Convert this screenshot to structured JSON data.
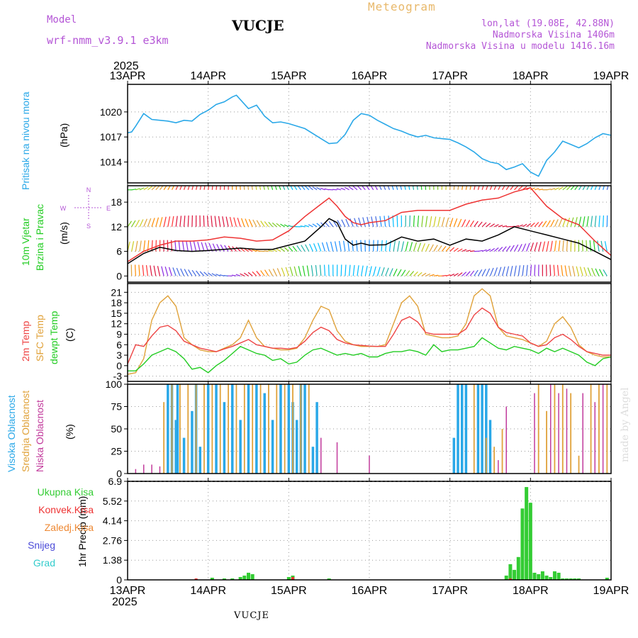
{
  "header": {
    "model_label": "Model",
    "model_name": "wrf-nmm_v3.9.1  e3km",
    "station": "VUCJE",
    "product": "Meteogram",
    "lonlat": "lon,lat (19.08E, 42.88N)",
    "altitude": "Nadmorska Visina 1406m",
    "model_altitude": "Nadmorska Visina u modelu 1416.16m",
    "watermark": "made by Angel",
    "footer_station": "VUCJE"
  },
  "time_axis": {
    "year": "2025",
    "labels": [
      "13APR",
      "14APR",
      "15APR",
      "16APR",
      "17APR",
      "18APR",
      "19APR"
    ]
  },
  "colors": {
    "pressure": "#2aa8e8",
    "wind_speed": "#000000",
    "gust": "#ee3333",
    "temp2m": "#ee4444",
    "sfc_temp": "#e0a23a",
    "dewpt": "#22cc22",
    "high_cloud": "#2aa8e8",
    "mid_cloud": "#e0a23a",
    "low_cloud": "#c23b9c",
    "total_precip": "#33cc33",
    "conv_precip": "#ee3333",
    "frz_precip": "#ee8833",
    "snow": "#4a4ad8",
    "hail": "#33cccc"
  },
  "chart_data": [
    {
      "type": "line",
      "title": "Pritisak na nivou mora",
      "ylabel": "(hPa)",
      "ylim": [
        1011.5,
        1023.3
      ],
      "yticks": [
        "1014",
        "1017",
        "1020"
      ],
      "x_days": [
        0,
        0.05,
        0.1,
        0.2,
        0.3,
        0.4,
        0.5,
        0.6,
        0.7,
        0.8,
        0.9,
        1.0,
        1.1,
        1.2,
        1.3,
        1.35,
        1.5,
        1.6,
        1.7,
        1.8,
        1.9,
        2.0,
        2.2,
        2.4,
        2.5,
        2.6,
        2.7,
        2.8,
        2.9,
        3.0,
        3.1,
        3.2,
        3.3,
        3.4,
        3.5,
        3.6,
        3.7,
        3.8,
        3.9,
        4.0,
        4.1,
        4.2,
        4.3,
        4.4,
        4.5,
        4.6,
        4.7,
        4.8,
        4.9,
        5.0,
        5.1,
        5.2,
        5.3,
        5.4,
        5.5,
        5.6,
        5.7,
        5.8,
        5.9,
        6.0
      ],
      "values": [
        1017.5,
        1017.6,
        1018.3,
        1019.8,
        1019.1,
        1019.0,
        1018.9,
        1018.7,
        1019.0,
        1018.9,
        1019.7,
        1020.2,
        1020.9,
        1021.2,
        1021.8,
        1022.0,
        1020.4,
        1020.8,
        1019.5,
        1018.7,
        1018.8,
        1018.6,
        1018.0,
        1016.8,
        1016.2,
        1016.3,
        1017.3,
        1019.0,
        1019.8,
        1019.6,
        1019.0,
        1018.5,
        1018.0,
        1017.7,
        1017.3,
        1017.0,
        1017.2,
        1016.9,
        1016.8,
        1016.7,
        1016.3,
        1015.8,
        1015.2,
        1014.4,
        1014.0,
        1013.8,
        1013.1,
        1013.4,
        1013.8,
        1012.8,
        1012.3,
        1014.2,
        1015.2,
        1016.5,
        1016.1,
        1015.7,
        1016.2,
        1016.9,
        1017.4,
        1017.2
      ]
    },
    {
      "type": "line",
      "title": "10m Vjetar Brzina i Pravac",
      "ylabel": "(m/s)",
      "ylim": [
        -1.5,
        22
      ],
      "yticks": [
        "0",
        "6",
        "12",
        "18"
      ],
      "compass": [
        "N",
        "E",
        "S",
        "W"
      ],
      "series": [
        {
          "name": "speed",
          "x_days": [
            0,
            0.2,
            0.4,
            0.6,
            0.8,
            1.0,
            1.2,
            1.4,
            1.6,
            1.8,
            2.0,
            2.2,
            2.4,
            2.5,
            2.6,
            2.7,
            2.8,
            2.9,
            3.0,
            3.2,
            3.4,
            3.6,
            3.8,
            4.0,
            4.2,
            4.4,
            4.6,
            4.8,
            5.0,
            5.2,
            5.4,
            5.6,
            5.8,
            6.0
          ],
          "values": [
            3.0,
            5.5,
            7.0,
            6.2,
            6.0,
            6.2,
            6.5,
            6.8,
            6.5,
            6.5,
            7.5,
            8.5,
            12.0,
            14.0,
            13.0,
            9.0,
            7.5,
            8.0,
            7.5,
            7.6,
            9.5,
            8.5,
            9.0,
            7.5,
            9.0,
            8.5,
            10.0,
            12.0,
            11.0,
            10.0,
            9.0,
            8.0,
            6.0,
            4.0
          ]
        },
        {
          "name": "gust",
          "x_days": [
            0,
            0.2,
            0.4,
            0.6,
            0.8,
            1.0,
            1.2,
            1.4,
            1.6,
            1.8,
            2.0,
            2.2,
            2.4,
            2.5,
            2.6,
            2.7,
            2.8,
            2.9,
            3.0,
            3.2,
            3.4,
            3.6,
            3.8,
            4.0,
            4.2,
            4.4,
            4.6,
            4.8,
            5.0,
            5.2,
            5.4,
            5.6,
            5.8,
            6.0
          ],
          "values": [
            3.5,
            6.0,
            7.5,
            8.5,
            8.5,
            8.8,
            9.5,
            9.2,
            8.5,
            8.8,
            11.0,
            14.5,
            17.5,
            19.0,
            17.0,
            14.5,
            13.0,
            12.5,
            13.0,
            13.5,
            15.5,
            16.0,
            16.0,
            16.0,
            17.5,
            18.5,
            19.0,
            20.5,
            21.5,
            17.0,
            14.0,
            12.5,
            8.5,
            5.0
          ]
        }
      ]
    },
    {
      "type": "line",
      "title": "2m Temp / SFC Temp / dewpt Temp",
      "ylabel": "(C)",
      "ylim": [
        -4.5,
        23.5
      ],
      "yticks": [
        "-3",
        "0",
        "3",
        "6",
        "9",
        "12",
        "15",
        "18",
        "21"
      ],
      "series": [
        {
          "name": "2m Temp",
          "x_days": [
            0,
            0.1,
            0.2,
            0.3,
            0.4,
            0.5,
            0.6,
            0.7,
            0.8,
            0.9,
            1.0,
            1.1,
            1.2,
            1.3,
            1.4,
            1.5,
            1.6,
            1.7,
            1.8,
            1.9,
            2.0,
            2.1,
            2.2,
            2.3,
            2.4,
            2.5,
            2.6,
            2.7,
            2.8,
            2.9,
            3.0,
            3.1,
            3.2,
            3.3,
            3.4,
            3.5,
            3.6,
            3.7,
            3.8,
            3.9,
            4.0,
            4.1,
            4.2,
            4.3,
            4.4,
            4.5,
            4.6,
            4.7,
            4.8,
            4.9,
            5.0,
            5.1,
            5.2,
            5.3,
            5.4,
            5.5,
            5.6,
            5.7,
            5.8,
            5.9,
            6.0
          ],
          "values": [
            0.5,
            6.0,
            5.5,
            8.5,
            11.0,
            11.5,
            10.0,
            7.0,
            6.0,
            5.0,
            4.5,
            4.0,
            4.8,
            5.5,
            6.5,
            7.5,
            6.0,
            5.5,
            5.0,
            5.0,
            4.8,
            5.2,
            7.0,
            9.5,
            11.0,
            10.0,
            7.5,
            6.5,
            6.0,
            5.8,
            5.6,
            5.5,
            5.5,
            9.0,
            13.0,
            14.0,
            12.5,
            9.5,
            9.0,
            9.0,
            9.0,
            9.0,
            10.5,
            14.5,
            16.5,
            15.0,
            11.0,
            9.5,
            9.0,
            8.5,
            6.5,
            5.5,
            6.0,
            8.0,
            9.0,
            7.5,
            5.5,
            4.0,
            3.5,
            3.0,
            3.0
          ]
        },
        {
          "name": "SFC Temp",
          "x_days": [
            0,
            0.1,
            0.2,
            0.3,
            0.4,
            0.5,
            0.6,
            0.7,
            0.8,
            0.9,
            1.0,
            1.1,
            1.2,
            1.3,
            1.4,
            1.5,
            1.6,
            1.7,
            1.8,
            1.9,
            2.0,
            2.1,
            2.2,
            2.3,
            2.4,
            2.5,
            2.6,
            2.7,
            2.8,
            2.9,
            3.0,
            3.1,
            3.2,
            3.3,
            3.4,
            3.5,
            3.6,
            3.7,
            3.8,
            3.9,
            4.0,
            4.1,
            4.2,
            4.3,
            4.4,
            4.5,
            4.6,
            4.7,
            4.8,
            4.9,
            5.0,
            5.1,
            5.2,
            5.3,
            5.4,
            5.5,
            5.6,
            5.7,
            5.8,
            5.9,
            6.0
          ],
          "values": [
            -2.5,
            -2.0,
            2.0,
            13.0,
            18.0,
            20.0,
            17.0,
            8.0,
            6.0,
            4.5,
            4.0,
            4.0,
            5.0,
            6.0,
            8.0,
            13.0,
            8.0,
            5.5,
            5.0,
            4.5,
            4.5,
            5.0,
            8.0,
            13.0,
            17.0,
            16.0,
            10.0,
            7.0,
            6.0,
            5.5,
            5.5,
            5.5,
            6.0,
            12.0,
            18.0,
            20.0,
            17.0,
            9.0,
            8.5,
            8.0,
            8.0,
            8.5,
            12.0,
            20.0,
            22.0,
            20.0,
            11.0,
            8.5,
            8.0,
            7.5,
            6.5,
            5.5,
            7.0,
            12.0,
            14.0,
            11.0,
            6.0,
            4.0,
            3.0,
            2.5,
            2.5
          ]
        },
        {
          "name": "dewpt Temp",
          "x_days": [
            0,
            0.1,
            0.2,
            0.3,
            0.4,
            0.5,
            0.6,
            0.7,
            0.8,
            0.9,
            1.0,
            1.1,
            1.2,
            1.3,
            1.4,
            1.5,
            1.6,
            1.7,
            1.8,
            1.9,
            2.0,
            2.1,
            2.2,
            2.3,
            2.4,
            2.5,
            2.6,
            2.7,
            2.8,
            2.9,
            3.0,
            3.1,
            3.2,
            3.3,
            3.4,
            3.5,
            3.6,
            3.7,
            3.8,
            3.9,
            4.0,
            4.1,
            4.2,
            4.3,
            4.4,
            4.5,
            4.6,
            4.7,
            4.8,
            4.9,
            5.0,
            5.1,
            5.2,
            5.3,
            5.4,
            5.5,
            5.6,
            5.7,
            5.8,
            5.9,
            6.0
          ],
          "values": [
            -1.5,
            -1.5,
            0.5,
            3.0,
            4.0,
            5.0,
            4.0,
            2.0,
            -1.0,
            -0.5,
            -2.0,
            0.0,
            1.5,
            3.5,
            5.5,
            4.5,
            3.5,
            3.0,
            1.5,
            2.0,
            0.5,
            1.0,
            3.0,
            4.5,
            5.0,
            4.0,
            3.0,
            3.5,
            3.0,
            3.5,
            2.5,
            2.5,
            3.5,
            4.0,
            4.0,
            4.5,
            4.0,
            3.0,
            6.0,
            4.0,
            4.5,
            4.5,
            5.0,
            5.5,
            8.0,
            6.5,
            5.0,
            4.5,
            5.5,
            5.0,
            4.5,
            3.5,
            5.0,
            4.0,
            5.0,
            4.0,
            3.0,
            1.0,
            0.0,
            2.0,
            2.5
          ]
        }
      ]
    },
    {
      "type": "bar",
      "title": "Visoka / Srednja / Niska Oblacnost",
      "ylabel": "(%)",
      "ylim": [
        0,
        100
      ],
      "yticks": [
        "0",
        "25",
        "50",
        "75",
        "100"
      ],
      "series": [
        {
          "name": "Visoka Oblacnost",
          "x_days": [
            0.5,
            0.55,
            0.6,
            0.62,
            0.7,
            0.8,
            0.85,
            0.9,
            1.0,
            1.1,
            1.2,
            1.3,
            1.4,
            1.5,
            1.6,
            1.7,
            1.8,
            1.9,
            2.0,
            2.05,
            2.1,
            2.15,
            2.2,
            2.3,
            2.35,
            4.05,
            4.1,
            4.15,
            4.2,
            4.35,
            4.4,
            4.45,
            4.5
          ],
          "values": [
            100,
            100,
            60,
            100,
            40,
            70,
            100,
            30,
            100,
            100,
            80,
            100,
            60,
            100,
            100,
            90,
            60,
            100,
            100,
            80,
            60,
            100,
            100,
            30,
            80,
            40,
            100,
            100,
            100,
            100,
            100,
            100,
            60
          ]
        },
        {
          "name": "Srednja Oblacnost",
          "x_days": [
            0.45,
            0.55,
            0.65,
            0.75,
            0.85,
            0.95,
            1.05,
            1.15,
            1.25,
            1.35,
            1.45,
            1.55,
            1.65,
            1.75,
            1.85,
            1.95,
            2.05,
            2.15,
            2.25,
            4.3,
            4.45,
            4.55,
            4.65,
            5.1,
            5.2,
            5.3,
            5.4,
            5.5,
            5.6,
            5.75,
            5.85,
            5.95
          ],
          "values": [
            80,
            100,
            100,
            100,
            100,
            100,
            100,
            100,
            100,
            100,
            100,
            100,
            100,
            100,
            100,
            100,
            100,
            100,
            100,
            100,
            40,
            30,
            50,
            100,
            70,
            100,
            100,
            90,
            20,
            100,
            100,
            100
          ]
        },
        {
          "name": "Niska Oblacnost",
          "x_days": [
            0.1,
            0.2,
            0.3,
            0.4,
            2.4,
            2.6,
            3.0,
            4.6,
            4.7,
            5.05,
            5.25,
            5.35,
            5.45,
            5.65,
            5.8,
            5.9
          ],
          "values": [
            5,
            10,
            10,
            8,
            40,
            35,
            20,
            15,
            75,
            90,
            100,
            90,
            95,
            90,
            80,
            100
          ]
        }
      ]
    },
    {
      "type": "bar",
      "title": "1hr Precip",
      "ylabel": "(mm)",
      "ylim": [
        0,
        6.9
      ],
      "yticks": [
        "0",
        "1.38",
        "2.76",
        "4.14",
        "5.52",
        "6.9"
      ],
      "legend": [
        "Ukupna Kisa",
        "Konvek.Kisa",
        "Zaledj.Kisa",
        "Snijeg",
        "Grad"
      ],
      "series": [
        {
          "name": "Ukupna Kisa",
          "x_days": [
            1.05,
            1.2,
            1.3,
            1.4,
            1.45,
            1.5,
            1.55,
            2.0,
            2.05,
            2.5,
            4.7,
            4.75,
            4.8,
            4.85,
            4.9,
            4.95,
            5.0,
            5.05,
            5.1,
            5.15,
            5.2,
            5.25,
            5.3,
            5.35,
            5.4,
            5.45,
            5.5,
            5.55,
            5.6,
            5.95
          ],
          "values": [
            0.15,
            0.1,
            0.1,
            0.2,
            0.3,
            0.5,
            0.4,
            0.2,
            0.3,
            0.1,
            0.3,
            1.1,
            0.7,
            1.6,
            5.0,
            6.5,
            5.4,
            0.5,
            0.4,
            0.6,
            0.3,
            0.2,
            0.6,
            0.5,
            0.1,
            0.1,
            0.1,
            0.1,
            0.1,
            0.15
          ]
        },
        {
          "name": "Konvek.Kisa",
          "x_days": [
            0.85,
            2.05,
            4.75
          ],
          "values": [
            0.1,
            0.2,
            0.1
          ]
        }
      ]
    }
  ]
}
